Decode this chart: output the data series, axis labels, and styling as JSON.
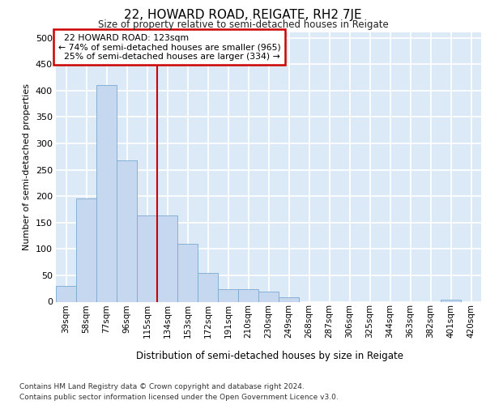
{
  "title": "22, HOWARD ROAD, REIGATE, RH2 7JE",
  "subtitle": "Size of property relative to semi-detached houses in Reigate",
  "xlabel": "Distribution of semi-detached houses by size in Reigate",
  "ylabel": "Number of semi-detached properties",
  "categories": [
    "39sqm",
    "58sqm",
    "77sqm",
    "96sqm",
    "115sqm",
    "134sqm",
    "153sqm",
    "172sqm",
    "191sqm",
    "210sqm",
    "230sqm",
    "249sqm",
    "268sqm",
    "287sqm",
    "306sqm",
    "325sqm",
    "344sqm",
    "363sqm",
    "382sqm",
    "401sqm",
    "420sqm"
  ],
  "values": [
    30,
    195,
    410,
    268,
    163,
    163,
    110,
    55,
    24,
    24,
    19,
    9,
    0,
    0,
    0,
    0,
    0,
    0,
    0,
    4,
    0
  ],
  "bar_color": "#c5d8ef",
  "bar_edge_color": "#7aaad0",
  "property_label": "22 HOWARD ROAD: 123sqm",
  "pct_smaller": 74,
  "n_smaller": 965,
  "pct_larger": 25,
  "n_larger": 334,
  "vline_x_index": 4.5,
  "annotation_box_color": "#ffffff",
  "annotation_box_edge_color": "#cc0000",
  "vline_color": "#cc0000",
  "ylim": [
    0,
    510
  ],
  "yticks": [
    0,
    50,
    100,
    150,
    200,
    250,
    300,
    350,
    400,
    450,
    500
  ],
  "plot_bg_color": "#dce9f7",
  "grid_color": "#ffffff",
  "footer_line1": "Contains HM Land Registry data © Crown copyright and database right 2024.",
  "footer_line2": "Contains public sector information licensed under the Open Government Licence v3.0."
}
